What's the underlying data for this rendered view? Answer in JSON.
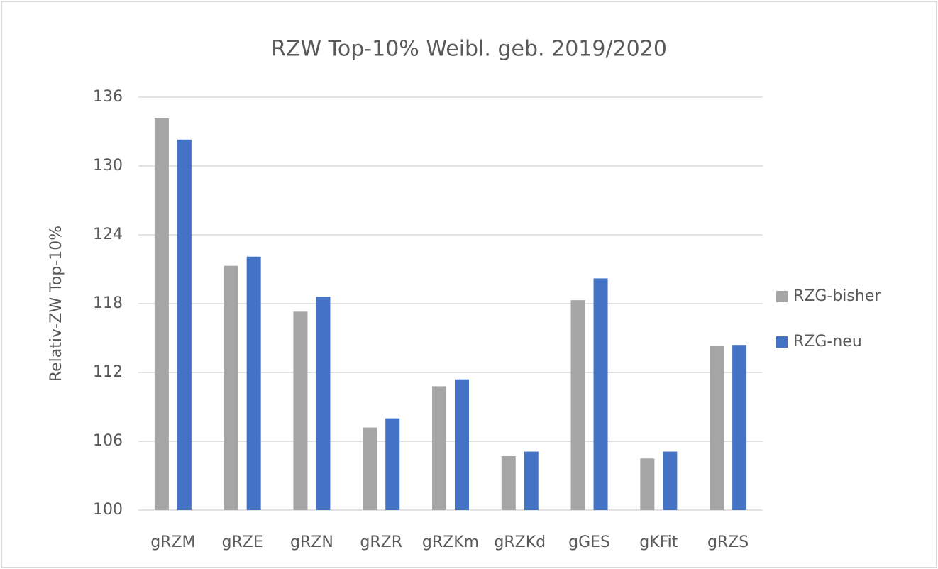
{
  "chart_data": {
    "type": "bar",
    "title": "RZW Top-10% Weibl. geb. 2019/2020",
    "y_label": "Relativ-ZW Top-10%",
    "categories": [
      "gRZM",
      "gRZE",
      "gRZN",
      "gRZR",
      "gRZKm",
      "gRZKd",
      "gGES",
      "gKFit",
      "gRZS"
    ],
    "series": [
      {
        "name": "RZG-bisher",
        "color": "#a5a5a5",
        "values": [
          134.2,
          121.3,
          117.3,
          107.2,
          110.8,
          104.7,
          118.3,
          104.5,
          114.3
        ]
      },
      {
        "name": "RZG-neu",
        "color": "#4472c4",
        "values": [
          132.3,
          122.1,
          118.6,
          108.0,
          111.4,
          105.1,
          120.2,
          105.1,
          114.4
        ]
      }
    ],
    "ylim": [
      100,
      136
    ],
    "yticks": [
      100,
      106,
      112,
      118,
      124,
      130,
      136
    ],
    "grid": true,
    "legend": "right"
  }
}
